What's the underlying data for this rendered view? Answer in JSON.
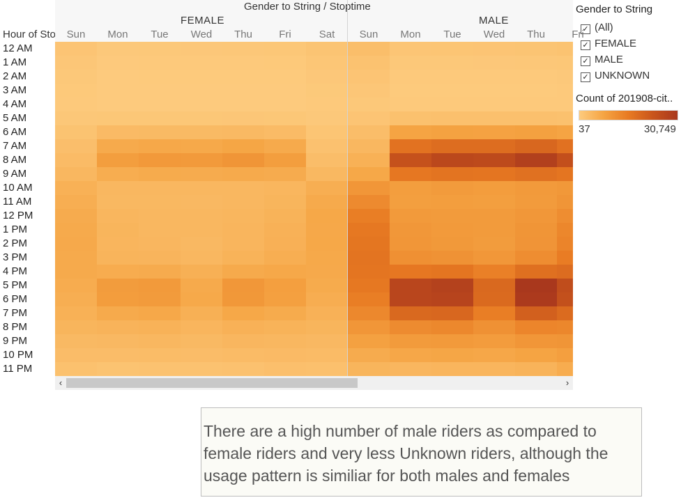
{
  "view": {
    "title": "Gender to String / Stoptime",
    "row_dimension_label": "Hour of Stoptime",
    "groups": [
      "FEMALE",
      "MALE"
    ],
    "days": [
      "Sun",
      "Mon",
      "Tue",
      "Wed",
      "Thu",
      "Fri",
      "Sat"
    ],
    "hours": [
      "12 AM",
      "1 AM",
      "2 AM",
      "3 AM",
      "4 AM",
      "5 AM",
      "6 AM",
      "7 AM",
      "8 AM",
      "9 AM",
      "10 AM",
      "11 AM",
      "12 PM",
      "1 PM",
      "2 PM",
      "3 PM",
      "4 PM",
      "5 PM",
      "6 PM",
      "7 PM",
      "8 PM",
      "9 PM",
      "10 PM",
      "11 PM"
    ]
  },
  "filter": {
    "title": "Gender to String",
    "options": [
      {
        "label": "(All)",
        "checked": true
      },
      {
        "label": "FEMALE",
        "checked": true
      },
      {
        "label": "MALE",
        "checked": true
      },
      {
        "label": "UNKNOWN",
        "checked": true
      }
    ]
  },
  "color_legend": {
    "title": "Count of 201908-cit..",
    "min_label": "37",
    "max_label": "30,749",
    "min": 37,
    "max": 30749,
    "colors": [
      "#fdcb7e",
      "#f5a443",
      "#e87a22",
      "#c9551c",
      "#a9381d"
    ]
  },
  "scrollbar": {
    "left_icon": "chevron-left-icon",
    "right_icon": "chevron-right-icon",
    "left_glyph": "‹",
    "right_glyph": "›"
  },
  "annotation": "There are a high number of male riders as compared to female riders and very less Unknown riders, although the usage pattern is similiar for both males and females",
  "chart_data": {
    "type": "heatmap",
    "title": "Gender to String / Stoptime",
    "ylabel": "Hour of Stoptime",
    "value_label": "Count of 201908-cit..",
    "range": [
      37,
      30749
    ],
    "columns": [
      {
        "group": "FEMALE",
        "day": "Sun",
        "values": [
          1400,
          1000,
          700,
          500,
          450,
          800,
          1700,
          2500,
          3200,
          4000,
          5200,
          5800,
          6300,
          6600,
          6700,
          6600,
          6500,
          6200,
          5800,
          5200,
          4400,
          3600,
          2900,
          2100
        ]
      },
      {
        "group": "FEMALE",
        "day": "Mon",
        "values": [
          600,
          350,
          220,
          150,
          200,
          900,
          3300,
          6500,
          8800,
          6000,
          3900,
          3800,
          4200,
          4400,
          4300,
          4600,
          6200,
          9200,
          9000,
          6500,
          4700,
          3700,
          2900,
          1700
        ]
      },
      {
        "group": "FEMALE",
        "day": "Tue",
        "values": [
          700,
          380,
          240,
          170,
          210,
          900,
          3400,
          6900,
          9700,
          6400,
          4000,
          3800,
          3900,
          4000,
          4100,
          4500,
          6300,
          9600,
          9400,
          6900,
          5000,
          4000,
          3000,
          1800
        ]
      },
      {
        "group": "FEMALE",
        "day": "Wed",
        "values": [
          750,
          400,
          260,
          170,
          210,
          900,
          3400,
          6800,
          9500,
          6300,
          3900,
          3700,
          3900,
          3900,
          3700,
          4000,
          5400,
          6600,
          6800,
          5400,
          4300,
          3600,
          2900,
          1800
        ]
      },
      {
        "group": "FEMALE",
        "day": "Thu",
        "values": [
          800,
          420,
          270,
          180,
          220,
          950,
          3500,
          7400,
          10400,
          6600,
          4000,
          3900,
          4200,
          4300,
          4300,
          4800,
          6600,
          10100,
          10000,
          7000,
          5100,
          4100,
          3200,
          2000
        ]
      },
      {
        "group": "FEMALE",
        "day": "Fri",
        "values": [
          900,
          500,
          320,
          220,
          230,
          900,
          3200,
          6500,
          8900,
          6300,
          4200,
          4400,
          4800,
          5100,
          5300,
          5800,
          6900,
          8600,
          8400,
          6400,
          4800,
          3900,
          3300,
          2400
        ]
      },
      {
        "group": "FEMALE",
        "day": "Sat",
        "values": [
          1500,
          1100,
          750,
          520,
          450,
          600,
          1300,
          2000,
          2800,
          3800,
          5800,
          6600,
          7000,
          6900,
          7000,
          6800,
          6700,
          6400,
          5900,
          5100,
          4400,
          3700,
          3100,
          2300
        ]
      },
      {
        "group": "MALE",
        "day": "Sun",
        "values": [
          2600,
          1900,
          1400,
          950,
          700,
          1400,
          2800,
          3900,
          5200,
          7000,
          10200,
          12400,
          14600,
          15800,
          16300,
          16600,
          16500,
          15900,
          14700,
          12800,
          10300,
          8200,
          6300,
          4400
        ]
      },
      {
        "group": "MALE",
        "day": "Mon",
        "values": [
          1200,
          650,
          400,
          280,
          420,
          2100,
          7800,
          17000,
          24000,
          16000,
          8900,
          8700,
          9600,
          10100,
          10200,
          11400,
          16000,
          27000,
          27000,
          19000,
          12200,
          9300,
          7100,
          4100
        ]
      },
      {
        "group": "MALE",
        "day": "Tue",
        "values": [
          1300,
          700,
          430,
          300,
          430,
          2200,
          8100,
          18100,
          26500,
          16600,
          9300,
          8900,
          9300,
          9500,
          9800,
          11000,
          16400,
          28000,
          27500,
          19400,
          12800,
          9600,
          7300,
          4300
        ]
      },
      {
        "group": "MALE",
        "day": "Wed",
        "values": [
          1400,
          750,
          460,
          320,
          440,
          2200,
          8000,
          18000,
          26000,
          16400,
          9000,
          8700,
          9300,
          9400,
          9200,
          10100,
          14300,
          19000,
          18800,
          14600,
          11200,
          9100,
          7100,
          4300
        ]
      },
      {
        "group": "MALE",
        "day": "Thu",
        "values": [
          1500,
          800,
          480,
          330,
          450,
          2300,
          8300,
          19400,
          28500,
          17300,
          9500,
          9300,
          10100,
          10500,
          10600,
          12000,
          17500,
          30749,
          30100,
          20800,
          13300,
          10200,
          7800,
          4700
        ]
      },
      {
        "group": "MALE",
        "day": "Fri",
        "values": [
          1700,
          900,
          560,
          380,
          470,
          2100,
          7700,
          17200,
          24600,
          16400,
          10000,
          10500,
          12000,
          13000,
          13600,
          15000,
          18400,
          25200,
          24500,
          18600,
          13000,
          10400,
          8600,
          6200
        ]
      }
    ]
  }
}
